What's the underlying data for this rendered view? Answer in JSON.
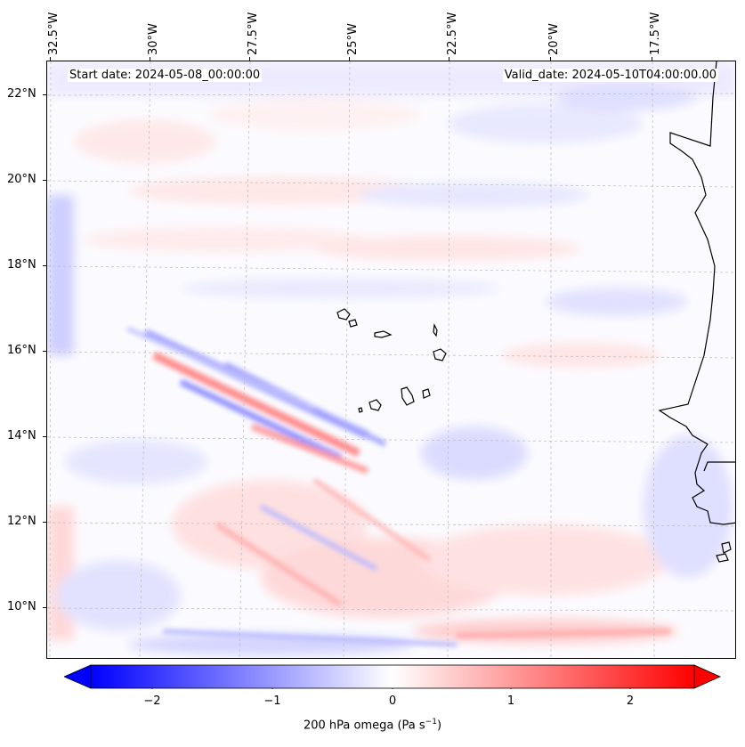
{
  "header": {
    "start_date": "Start date: 2024-05-08_00:00:00",
    "valid_date": "Valid_date: 2024-05-10T04:00:00.00"
  },
  "axes": {
    "lon_ticks": [
      "32.5°W",
      "30°W",
      "27.5°W",
      "25°W",
      "22.5°W",
      "20°W",
      "17.5°W"
    ],
    "lat_ticks": [
      "22°N",
      "20°N",
      "18°N",
      "16°N",
      "14°N",
      "12°N",
      "10°N"
    ]
  },
  "colorbar": {
    "ticks": [
      "−2",
      "−1",
      "0",
      "1",
      "2"
    ],
    "label_main": "200 hPa omega (Pa s",
    "label_exp": "−1",
    "label_end": ")",
    "min": -2.6,
    "max": 2.6,
    "negative_color": "#0000ff",
    "positive_color": "#ff0000",
    "neutral_color": "#ffffff"
  },
  "map": {
    "projection": "lat-lon",
    "extent_lon": [
      -33.0,
      -15.5
    ],
    "extent_lat": [
      8.8,
      22.8
    ],
    "gridlines": true,
    "coastline_color": "#000000"
  }
}
